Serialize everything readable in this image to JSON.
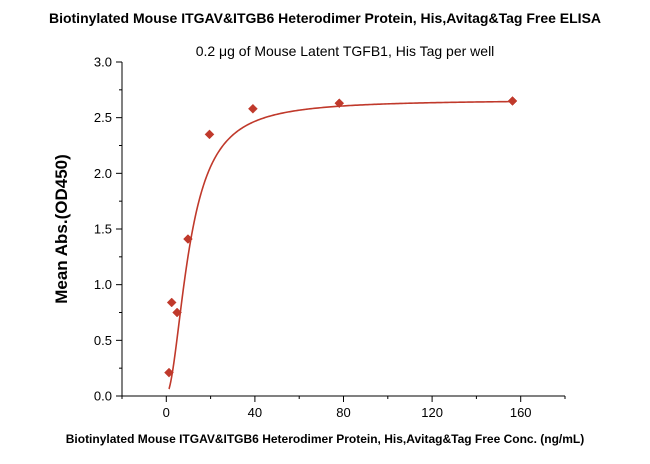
{
  "chart_data": {
    "type": "scatter",
    "title": "Biotinylated Mouse ITGAV&ITGB6 Heterodimer Protein, His,Avitag&Tag Free ELISA",
    "subtitle": "0.2 μg of Mouse Latent TGFB1, His Tag per well",
    "xlabel": "Biotinylated Mouse ITGAV&ITGB6 Heterodimer Protein, His,Avitag&Tag Free Conc. (ng/mL)",
    "ylabel": "Mean Abs.(OD450)",
    "xlim": [
      -20,
      180
    ],
    "ylim": [
      0,
      3.0
    ],
    "x_ticks": [
      0,
      40,
      80,
      120,
      160
    ],
    "y_ticks": [
      0.0,
      0.5,
      1.0,
      1.5,
      2.0,
      2.5,
      3.0
    ],
    "x_tick_labels": [
      "0",
      "40",
      "80",
      "120",
      "160"
    ],
    "y_tick_labels": [
      "0.0",
      "0.5",
      "1.0",
      "1.5",
      "2.0",
      "2.5",
      "3.0"
    ],
    "grid": false,
    "legend": "none",
    "color": "#c0392b",
    "series": [
      {
        "x": [
          1.22,
          2.44,
          4.88,
          9.77,
          19.5,
          39.1,
          78.1,
          156.3
        ],
        "y": [
          0.21,
          0.84,
          0.75,
          1.41,
          2.35,
          2.58,
          2.63,
          2.65
        ]
      }
    ],
    "fit_curve": {
      "type": "4PL",
      "bottom": 0.02,
      "top": 2.66,
      "ec50": 10.5,
      "hill": 1.9
    }
  }
}
